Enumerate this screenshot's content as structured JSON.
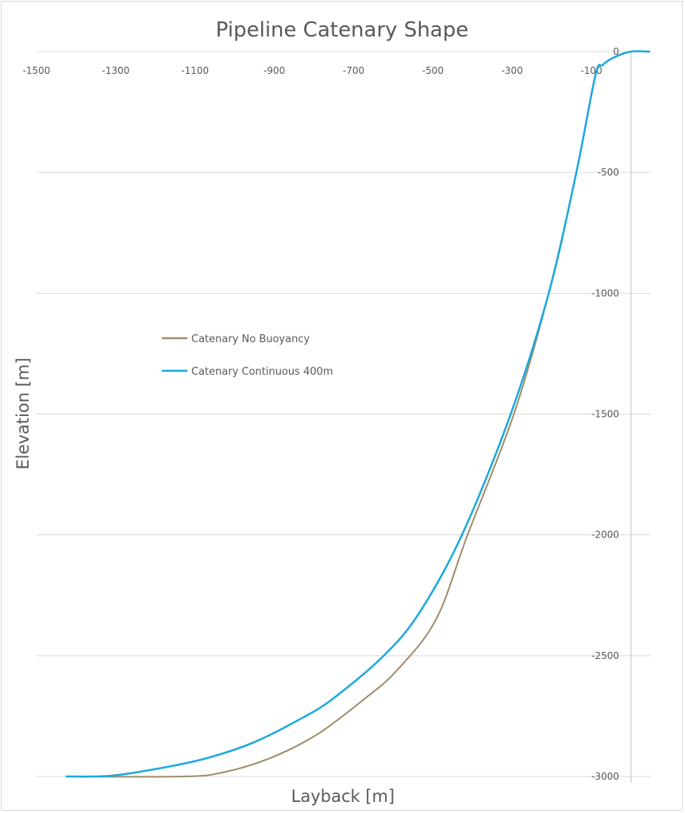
{
  "chart_data": {
    "type": "line",
    "title": "Pipeline Catenary Shape",
    "xlabel": "Layback [m]",
    "ylabel": "Elevation [m]",
    "xlim": [
      -1500,
      50
    ],
    "ylim": [
      -3000,
      0
    ],
    "xticks": [
      -1500,
      -1300,
      -1100,
      -900,
      -700,
      -500,
      -300,
      -100
    ],
    "yticks": [
      0,
      -500,
      -1000,
      -1500,
      -2000,
      -2500,
      -3000
    ],
    "grid": "horizontal",
    "legend_position": "center-left",
    "series": [
      {
        "name": "Catenary No Buoyancy",
        "color": "#a08c6a",
        "x": [
          -1426,
          -1132,
          -1032,
          -912,
          -792,
          -672,
          -592,
          -492,
          -412,
          -296,
          -208,
          -138,
          -90,
          -72,
          -42,
          0,
          48
        ],
        "y": [
          -3000,
          -3000,
          -2984,
          -2925,
          -2826,
          -2678,
          -2563,
          -2350,
          -1998,
          -1502,
          -1002,
          -500,
          -99,
          -56,
          -23,
          0,
          0
        ]
      },
      {
        "name": "Catenary Continuous 400m",
        "color": "#1ba9dc",
        "x": [
          -1426,
          -1312,
          -1192,
          -1072,
          -952,
          -832,
          -752,
          -622,
          -532,
          -426,
          -304,
          -208,
          -138,
          -90,
          -72,
          -42,
          0,
          48
        ],
        "y": [
          -3000,
          -2997,
          -2967,
          -2925,
          -2859,
          -2760,
          -2678,
          -2497,
          -2317,
          -1998,
          -1502,
          -1002,
          -500,
          -99,
          -56,
          -23,
          0,
          0
        ]
      }
    ]
  }
}
